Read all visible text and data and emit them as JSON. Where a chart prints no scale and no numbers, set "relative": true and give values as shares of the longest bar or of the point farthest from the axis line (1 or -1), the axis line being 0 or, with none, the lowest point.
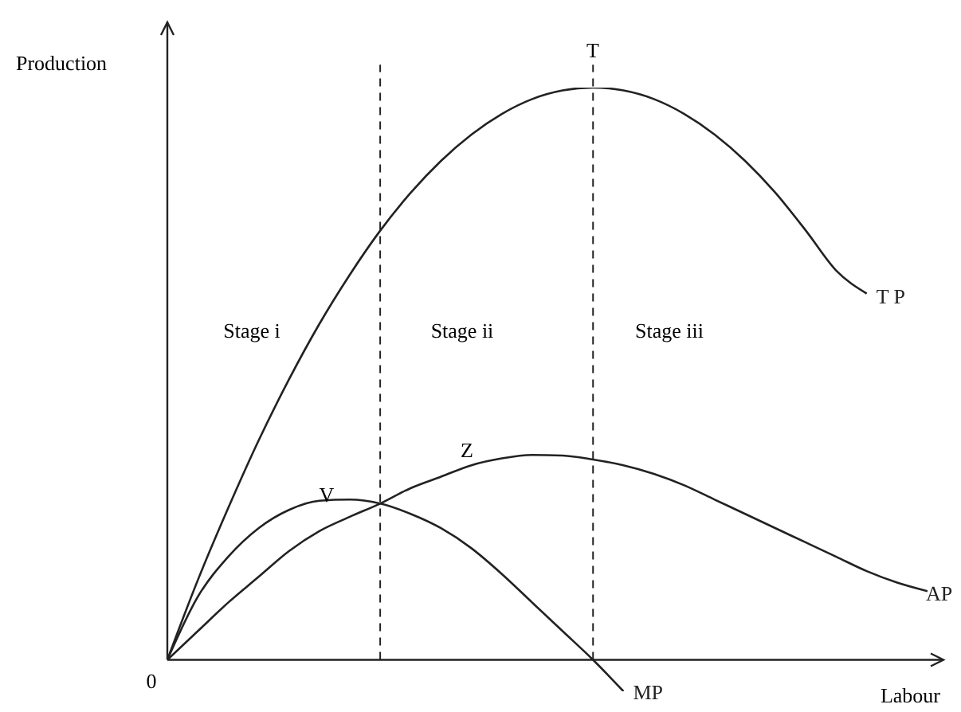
{
  "chart_data": {
    "type": "line",
    "relative": true,
    "xlabel": "Labour",
    "ylabel": "Production",
    "marker": "none",
    "tick_labels": false,
    "categories": [
      null,
      null,
      null,
      null,
      null,
      null,
      null,
      null,
      null,
      null,
      null,
      null,
      null,
      null,
      null,
      null,
      null,
      null,
      null,
      null,
      null,
      null,
      null,
      null,
      null,
      null
    ],
    "series": [
      {
        "name": "T P",
        "color": "#222222",
        "values": [
          0,
          0.139,
          0.265,
          0.383,
          0.49,
          0.587,
          0.673,
          0.75,
          0.816,
          0.872,
          0.918,
          0.954,
          0.98,
          0.995,
          1,
          0.995,
          0.98,
          0.954,
          0.918,
          0.872,
          0.816,
          0.75,
          0.68,
          0.64,
          null,
          null
        ]
      },
      {
        "name": "AP",
        "color": "#222222",
        "values": [
          0,
          0.05,
          0.1,
          0.145,
          0.19,
          0.225,
          0.25,
          0.273,
          0.3,
          0.32,
          0.34,
          0.352,
          0.358,
          0.357,
          0.35,
          0.34,
          0.325,
          0.305,
          0.28,
          0.255,
          0.23,
          0.205,
          0.18,
          0.155,
          0.135,
          0.12
        ]
      },
      {
        "name": "MP",
        "color": "#222222",
        "values": [
          0,
          0.11,
          0.18,
          0.23,
          0.262,
          0.278,
          0.28,
          0.273,
          0.255,
          0.23,
          0.195,
          0.15,
          0.1,
          0.05,
          0,
          -0.055,
          null,
          null,
          null,
          null,
          null,
          null,
          null,
          null,
          null,
          null
        ]
      }
    ],
    "ref_lines": [
      {
        "axis": "x",
        "line_style": "dashed",
        "color": "#222222"
      },
      {
        "axis": "x",
        "line_style": "dashed",
        "color": "#222222"
      }
    ],
    "annotations": [
      "T",
      "Z",
      "V",
      "Stage i",
      "Stage ii",
      "Stage iii",
      "0"
    ]
  }
}
